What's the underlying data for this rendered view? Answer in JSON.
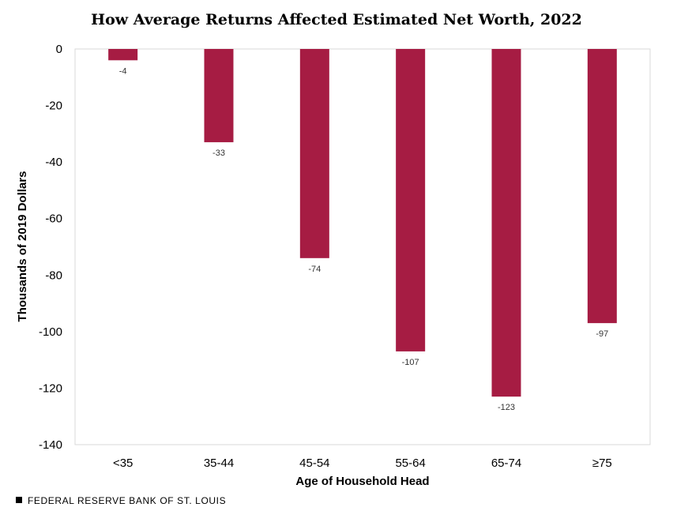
{
  "chart_data": {
    "type": "bar",
    "title": "How Average Returns Affected Estimated Net Worth, 2022",
    "xlabel": "Age of Household Head",
    "ylabel": "Thousands  of 2019 Dollars",
    "categories": [
      "<35",
      "35-44",
      "45-54",
      "55-64",
      "65-74",
      "≥75"
    ],
    "values": [
      -4,
      -33,
      -74,
      -107,
      -123,
      -97
    ],
    "data_labels": [
      "-4",
      "-33",
      "-74",
      "-107",
      "-123",
      "-97"
    ],
    "ylim": [
      -140,
      0
    ],
    "yticks": [
      0,
      -20,
      -40,
      -60,
      -80,
      -100,
      -120,
      -140
    ],
    "grid": false,
    "bar_color": "#a61c43"
  },
  "source": "FEDERAL RESERVE BANK OF ST. LOUIS",
  "source_mark_color": "#000000"
}
